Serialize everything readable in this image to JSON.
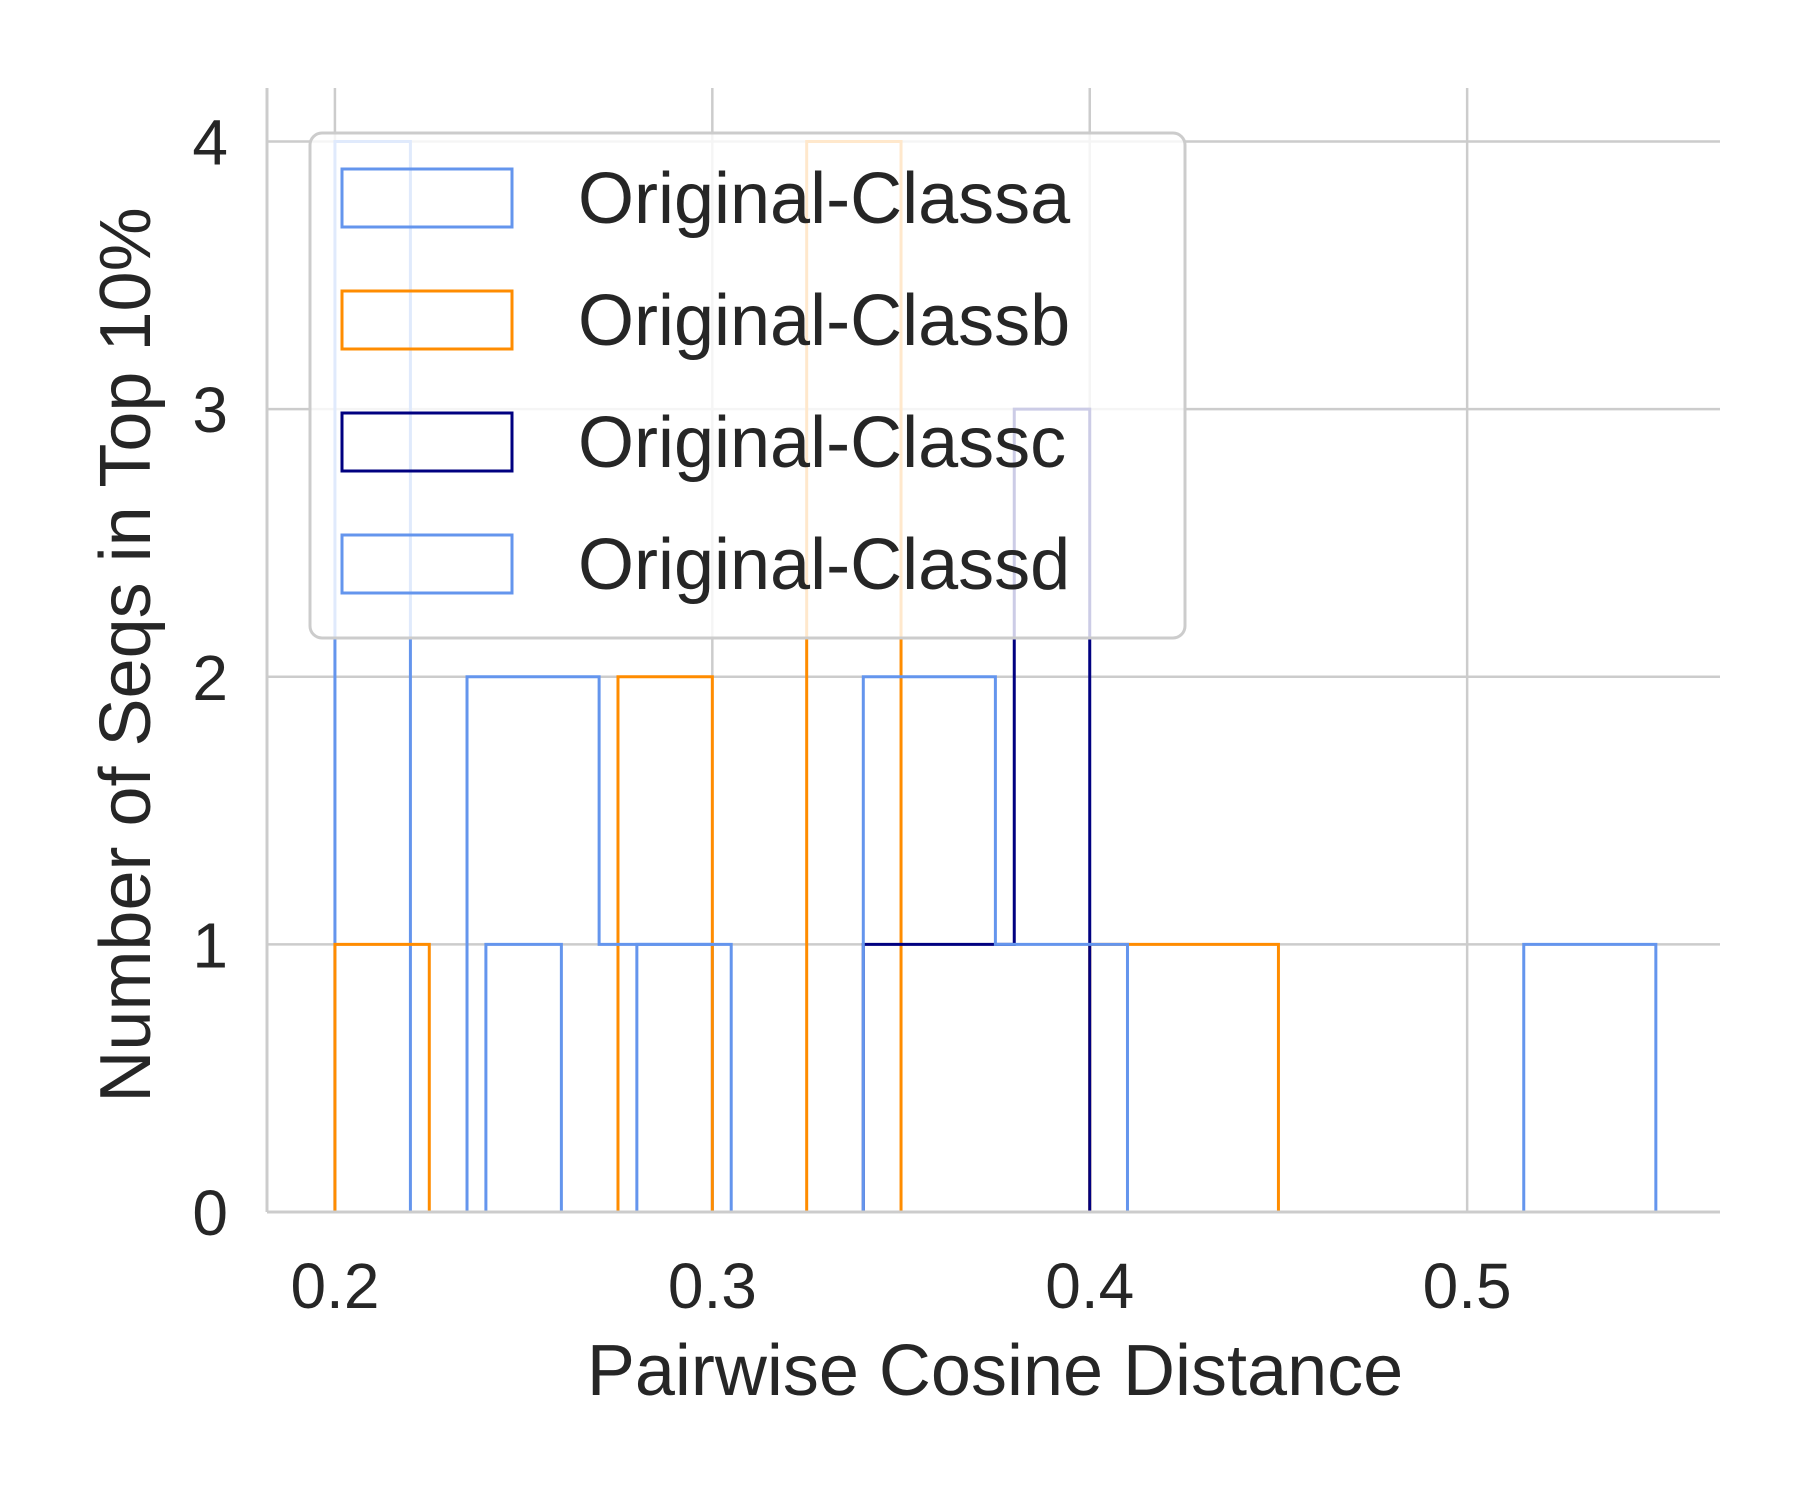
{
  "chart_data": {
    "type": "bar",
    "subtype": "histogram-step",
    "xlabel": "Pairwise Cosine Distance",
    "ylabel": "Number of Seqs in Top 10%",
    "xlim": [
      0.182,
      0.567
    ],
    "ylim": [
      0,
      4.2
    ],
    "xticks": [
      0.2,
      0.3,
      0.4,
      0.5
    ],
    "xtick_labels": [
      "0.2",
      "0.3",
      "0.4",
      "0.5"
    ],
    "yticks": [
      0,
      1,
      2,
      3,
      4
    ],
    "ytick_labels": [
      "0",
      "1",
      "2",
      "3",
      "4"
    ],
    "grid": true,
    "legend_position": "upper-left",
    "colors": {
      "grid": "#cccccc",
      "axis": "#cccccc",
      "text": "#262626",
      "legend_border": "#cccccc"
    },
    "series": [
      {
        "name": "Original-Classa",
        "color": "#6495ed",
        "bin_edges": [
          0.2,
          0.22,
          0.24,
          0.26,
          0.28,
          0.3
        ],
        "counts": [
          4,
          0,
          1,
          0,
          1
        ]
      },
      {
        "name": "Original-Classb",
        "color": "#ff8c00",
        "bin_edges": [
          0.2,
          0.225,
          0.25,
          0.275,
          0.3,
          0.325,
          0.35,
          0.375,
          0.4,
          0.425,
          0.45
        ],
        "counts": [
          1,
          0,
          0,
          2,
          0,
          4,
          0,
          0,
          1,
          1
        ]
      },
      {
        "name": "Original-Classc",
        "color": "#000080",
        "bin_edges": [
          0.28,
          0.3,
          0.32,
          0.34,
          0.36,
          0.38,
          0.4
        ],
        "counts": [
          0,
          0,
          0,
          1,
          1,
          3
        ]
      },
      {
        "name": "Original-Classd",
        "color": "#6495ed",
        "bin_edges": [
          0.235,
          0.27,
          0.305,
          0.34,
          0.375,
          0.41,
          0.445,
          0.48,
          0.515,
          0.55
        ],
        "counts": [
          2,
          1,
          0,
          2,
          1,
          0,
          0,
          0,
          1
        ]
      }
    ]
  }
}
